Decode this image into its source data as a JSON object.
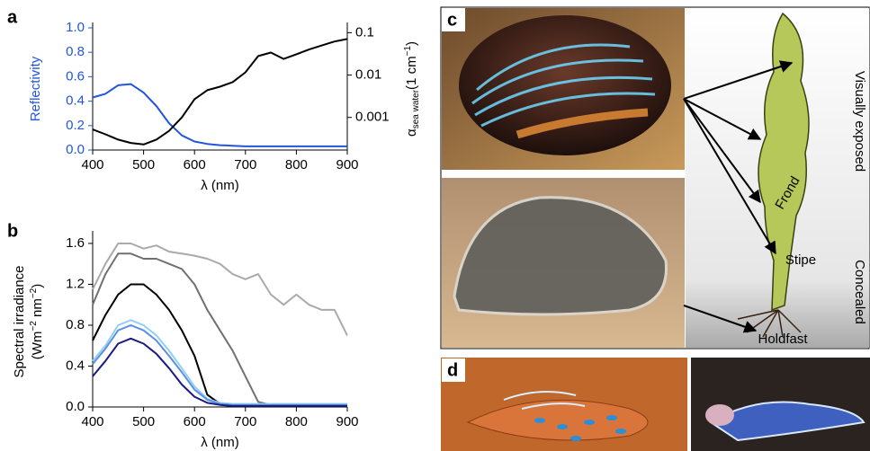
{
  "panel_labels": [
    "a",
    "b",
    "c",
    "d"
  ],
  "chart_data": [
    {
      "type": "line",
      "x": [
        400,
        425,
        450,
        475,
        500,
        525,
        550,
        575,
        600,
        625,
        650,
        675,
        700,
        725,
        750,
        775,
        800,
        825,
        850,
        875,
        900
      ],
      "xlim": [
        400,
        900
      ],
      "xticks": [
        400,
        500,
        600,
        700,
        800,
        900
      ],
      "ylim": [
        0,
        1
      ],
      "yticks": [
        {
          "value": 0,
          "label": "0.0"
        },
        0.2,
        0.4,
        0.6,
        0.8,
        {
          "value": 1,
          "label": "1.0"
        }
      ],
      "y2lim": [
        0.00017,
        0.13
      ],
      "y2ticks": [
        0.1,
        0.01,
        0.001
      ],
      "y2scale": "log",
      "xlabel": "λ (nm)",
      "ylabel": "Reflectivity",
      "ylabel_color": "#2255dd",
      "y2label": [
        "α",
        "sea water",
        "(1 cm",
        "−1",
        ")"
      ],
      "series": [
        {
          "color": "#2255dd",
          "values": [
            0.43,
            0.46,
            0.53,
            0.54,
            0.47,
            0.36,
            0.22,
            0.12,
            0.07,
            0.05,
            0.04,
            0.035,
            0.03,
            0.03,
            0.03,
            0.03,
            0.03,
            0.03,
            0.03,
            0.03,
            0.03
          ]
        },
        {
          "color": "#000000",
          "axis": "y2",
          "values": [
            0.00052,
            0.0004,
            0.0003,
            0.00025,
            0.00023,
            0.0003,
            0.00048,
            0.001,
            0.0027,
            0.0044,
            0.0053,
            0.0068,
            0.0116,
            0.028,
            0.034,
            0.024,
            0.031,
            0.04,
            0.05,
            0.062,
            0.071
          ]
        }
      ]
    },
    {
      "type": "line",
      "x": [
        400,
        425,
        450,
        475,
        500,
        525,
        550,
        575,
        600,
        625,
        650,
        675,
        700,
        725,
        750,
        775,
        800,
        825,
        850,
        875,
        900
      ],
      "xlim": [
        400,
        900
      ],
      "xticks": [
        400,
        500,
        600,
        700,
        800,
        900
      ],
      "ylim": [
        0,
        1.67
      ],
      "yticks": [
        {
          "value": 0,
          "label": "0.0"
        },
        0.4,
        0.8,
        1.2,
        1.6
      ],
      "xlabel": "λ (nm)",
      "ylabel": [
        "Spectral irradiance",
        "(Wm",
        "−2",
        " nm",
        "−2",
        ")"
      ],
      "series": [
        {
          "color": "#aaaaaa",
          "values": [
            1.15,
            1.4,
            1.6,
            1.6,
            1.55,
            1.58,
            1.52,
            1.5,
            1.48,
            1.45,
            1.4,
            1.3,
            1.25,
            1.3,
            1.1,
            1.0,
            1.1,
            1.0,
            0.95,
            0.95,
            0.7
          ]
        },
        {
          "color": "#707070",
          "values": [
            1.0,
            1.3,
            1.5,
            1.5,
            1.45,
            1.45,
            1.4,
            1.35,
            1.2,
            0.95,
            0.75,
            0.55,
            0.3,
            0.05,
            0.02,
            0.02,
            0.02,
            0.02,
            0.02,
            0.02,
            0.02
          ]
        },
        {
          "color": "#000000",
          "values": [
            0.65,
            0.9,
            1.1,
            1.2,
            1.2,
            1.1,
            0.95,
            0.75,
            0.5,
            0.12,
            0.03,
            0.02,
            0.02,
            0.02,
            0.02,
            0.02,
            0.02,
            0.02,
            0.02,
            0.02,
            0.02
          ]
        },
        {
          "color": "#8fd0f5",
          "values": [
            0.45,
            0.6,
            0.8,
            0.85,
            0.8,
            0.7,
            0.55,
            0.38,
            0.2,
            0.08,
            0.04,
            0.03,
            0.03,
            0.03,
            0.03,
            0.03,
            0.03,
            0.03,
            0.03,
            0.03,
            0.03
          ]
        },
        {
          "color": "#5c8fe0",
          "values": [
            0.42,
            0.57,
            0.75,
            0.8,
            0.75,
            0.65,
            0.5,
            0.34,
            0.17,
            0.07,
            0.03,
            0.02,
            0.02,
            0.02,
            0.02,
            0.02,
            0.02,
            0.02,
            0.02,
            0.02,
            0.02
          ]
        },
        {
          "color": "#1a1a80",
          "values": [
            0.3,
            0.45,
            0.62,
            0.67,
            0.62,
            0.52,
            0.38,
            0.22,
            0.1,
            0.04,
            0.02,
            0.01,
            0.01,
            0.01,
            0.01,
            0.01,
            0.01,
            0.01,
            0.01,
            0.01,
            0.01
          ]
        }
      ]
    }
  ],
  "diagram": {
    "frond": "Frond",
    "stipe": "Stipe",
    "holdfast": "Holdfast",
    "exposed": "Visually exposed",
    "concealed": "Concealed"
  }
}
